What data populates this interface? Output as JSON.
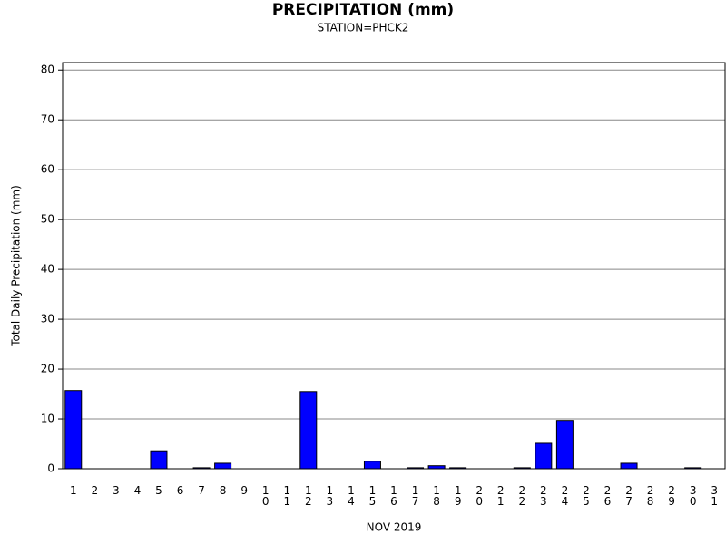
{
  "chart_data": {
    "type": "bar",
    "title": "PRECIPITATION (mm)",
    "subtitle": "STATION=PHCK2",
    "y_label": "Total Daily Precipitation (mm)",
    "x_label": "NOV 2019",
    "categories": [
      "1",
      "2",
      "3",
      "4",
      "5",
      "6",
      "7",
      "8",
      "9",
      "10",
      "11",
      "12",
      "13",
      "14",
      "15",
      "16",
      "17",
      "18",
      "19",
      "20",
      "21",
      "22",
      "23",
      "24",
      "25",
      "26",
      "27",
      "28",
      "29",
      "30",
      "31"
    ],
    "values": [
      15.7,
      0,
      0,
      0,
      3.6,
      0,
      0.2,
      1.1,
      0,
      0,
      0,
      15.5,
      0,
      0,
      1.5,
      0,
      0.2,
      0.6,
      0.2,
      0,
      0,
      0.2,
      5.1,
      9.7,
      0,
      0,
      1.1,
      0,
      0,
      0.2,
      0
    ],
    "color": "#0000ff",
    "ylim": [
      0,
      81.5
    ],
    "yticks": [
      0,
      10,
      20,
      30,
      40,
      50,
      60,
      70,
      80
    ],
    "grid": true
  }
}
